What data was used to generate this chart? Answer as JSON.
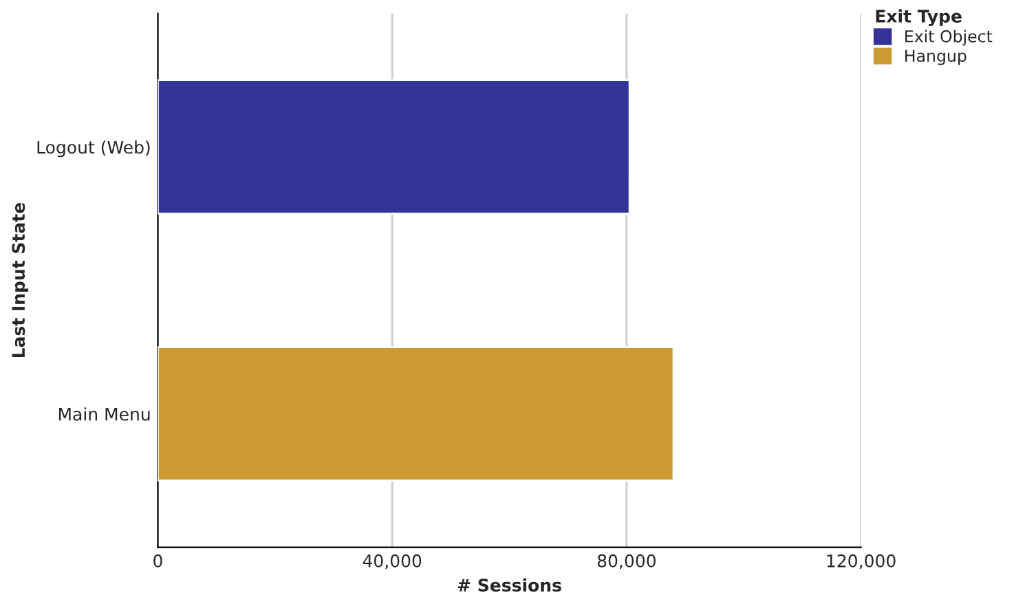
{
  "chart_data": {
    "type": "bar",
    "orientation": "horizontal",
    "stacked": true,
    "xlabel": "# Sessions",
    "ylabel": "Last Input State",
    "legend_title": "Exit Type",
    "categories": [
      "Logout (Web)",
      "Main Menu"
    ],
    "series": [
      {
        "name": "Exit Object",
        "color": "#333399",
        "values": [
          80500,
          null
        ]
      },
      {
        "name": "Hangup",
        "color": "#cc9933",
        "values": [
          null,
          88000
        ]
      }
    ],
    "xlim": [
      0,
      120000
    ],
    "xticks": [
      0,
      {
        "value": 40000,
        "label": "40,000"
      },
      {
        "value": 80000,
        "label": "80,000"
      },
      {
        "value": 120000,
        "label": "120,000"
      }
    ],
    "grid": "x",
    "legend": "top right"
  }
}
